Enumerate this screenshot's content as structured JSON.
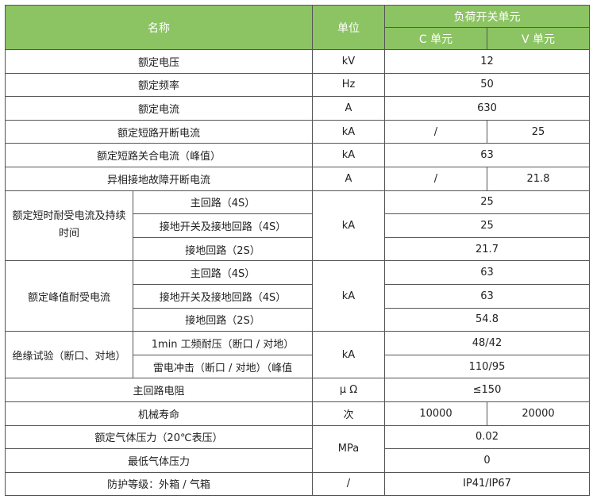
{
  "header": {
    "name": "名称",
    "unit": "单位",
    "group": "负荷开关单元",
    "c": "C 单元",
    "v": "V 单元"
  },
  "rows": [
    {
      "name": "额定电压",
      "unit": "kV",
      "value": "12"
    },
    {
      "name": "额定频率",
      "unit": "Hz",
      "value": "50"
    },
    {
      "name": "额定电流",
      "unit": "A",
      "value": "630"
    },
    {
      "name": "额定短路开断电流",
      "unit": "kA",
      "c": "/",
      "v": "25"
    },
    {
      "name": "额定短路关合电流（峰值）",
      "unit": "kA",
      "value": "63"
    },
    {
      "name": "异相接地故障开断电流",
      "unit": "A",
      "c": "/",
      "v": "21.8"
    }
  ],
  "group1": {
    "name": "额定短时耐受电流及持续时间",
    "unit": "kA",
    "items": [
      {
        "name": "主回路（4S）",
        "value": "25"
      },
      {
        "name": "接地开关及接地回路（4S）",
        "value": "25"
      },
      {
        "name": "接地回路（2S）",
        "value": "21.7"
      }
    ]
  },
  "group2": {
    "name": "额定峰值耐受电流",
    "unit": "kA",
    "items": [
      {
        "name": "主回路（4S）",
        "value": "63"
      },
      {
        "name": "接地开关及接地回路（4S）",
        "value": "63"
      },
      {
        "name": "接地回路（2S）",
        "value": "54.8"
      }
    ]
  },
  "group3": {
    "name": "绝缘试验（断口、对地）",
    "unit": "kA",
    "items": [
      {
        "name": "1min 工频耐压（断口 / 对地）",
        "value": "48/42"
      },
      {
        "name": "雷电冲击（断口 / 对地）（峰值",
        "value": "110/95"
      }
    ]
  },
  "resistance": {
    "name": "主回路电阻",
    "unit": "μ Ω",
    "value": "≤150"
  },
  "life": {
    "name": "机械寿命",
    "unit": "次",
    "c": "10000",
    "v": "20000"
  },
  "gas": {
    "unit": "MPa",
    "items": [
      {
        "name": "额定气体压力（20℃表压）",
        "value": "0.02"
      },
      {
        "name": "最低气体压力",
        "value": "0"
      }
    ]
  },
  "protection": {
    "name": "防护等级：外箱 / 气箱",
    "unit": "/",
    "value": "IP41/IP67"
  },
  "colors": {
    "header_bg": "#8cc463",
    "header_text": "#ffffff"
  }
}
